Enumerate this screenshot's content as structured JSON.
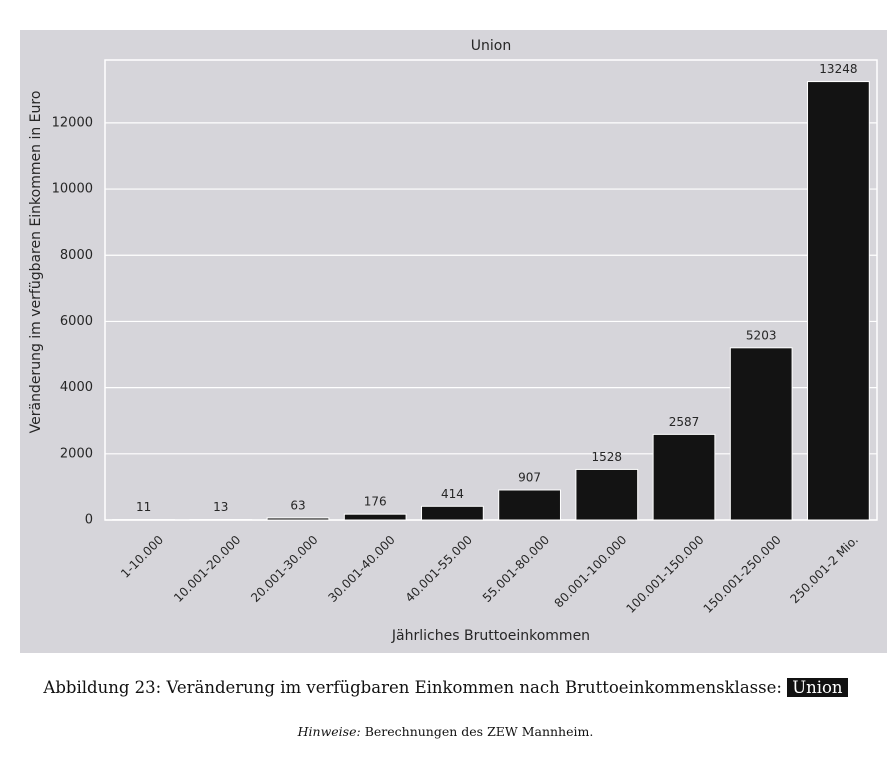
{
  "chart_data": {
    "type": "bar",
    "title": "Union",
    "xlabel": "Jährliches Bruttoeinkommen",
    "ylabel": "Veränderung im verfügbaren Einkommen in Euro",
    "categories": [
      "1-10.000",
      "10.001-20.000",
      "20.001-30.000",
      "30.001-40.000",
      "40.001-55.000",
      "55.001-80.000",
      "80.001-100.000",
      "100.001-150.000",
      "150.001-250.000",
      "250.001-2 Mio."
    ],
    "values": [
      11,
      13,
      63,
      176,
      414,
      907,
      1528,
      2587,
      5203,
      13248
    ],
    "color": "#131313",
    "ylim": [
      0,
      13900
    ],
    "yticks": [
      0,
      2000,
      4000,
      6000,
      8000,
      10000,
      12000
    ],
    "grid": true
  },
  "caption": {
    "label": "Abbildung 23: Veränderung im verfügbaren Einkommen nach Bruttoeinkommensklasse:",
    "highlight": "Union"
  },
  "note": {
    "label": "Hinweise:",
    "text": "Berechnungen des ZEW Mannheim."
  }
}
